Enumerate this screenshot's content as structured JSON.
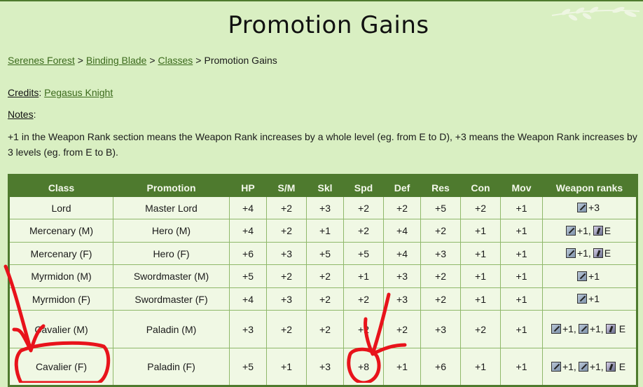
{
  "page": {
    "title": "Promotion Gains",
    "breadcrumb": [
      "Serenes Forest",
      "Binding Blade",
      "Classes"
    ],
    "breadcrumb_current": "Promotion Gains",
    "breadcrumb_sep": ">",
    "credits_label": "Credits",
    "credits_value": "Pegasus Knight",
    "notes_label": "Notes",
    "notes_text": "+1 in the Weapon Rank section means the Weapon Rank increases by a whole level (eg. from E to D), +3 means the Weapon Rank increases by 3 levels (eg. from E to B)."
  },
  "colors": {
    "background": "#d9efc2",
    "header": "#4e7a2e",
    "cell": "#f0f8e4",
    "link": "#3b6a1c",
    "annotation": "#e8131b"
  },
  "table": {
    "headers": [
      "Class",
      "Promotion",
      "HP",
      "S/M",
      "Skl",
      "Spd",
      "Def",
      "Res",
      "Con",
      "Mov",
      "Weapon ranks"
    ],
    "rows": [
      {
        "cells": [
          "Lord",
          "Master Lord",
          "+4",
          "+2",
          "+3",
          "+2",
          "+2",
          "+5",
          "+2",
          "+1"
        ],
        "ranks": [
          {
            "icon": "lance-icon",
            "text": "+3"
          }
        ]
      },
      {
        "cells": [
          "Mercenary (M)",
          "Hero (M)",
          "+4",
          "+2",
          "+1",
          "+2",
          "+4",
          "+2",
          "+1",
          "+1"
        ],
        "ranks": [
          {
            "icon": "lance-icon",
            "text": "+1,"
          },
          {
            "icon": "staff-icon",
            "text": "E"
          }
        ]
      },
      {
        "cells": [
          "Mercenary (F)",
          "Hero (F)",
          "+6",
          "+3",
          "+5",
          "+5",
          "+4",
          "+3",
          "+1",
          "+1"
        ],
        "ranks": [
          {
            "icon": "lance-icon",
            "text": "+1,"
          },
          {
            "icon": "staff-icon",
            "text": "E"
          }
        ]
      },
      {
        "cells": [
          "Myrmidon (M)",
          "Swordmaster (M)",
          "+5",
          "+2",
          "+2",
          "+1",
          "+3",
          "+2",
          "+1",
          "+1"
        ],
        "ranks": [
          {
            "icon": "lance-icon",
            "text": "+1"
          }
        ]
      },
      {
        "cells": [
          "Myrmidon (F)",
          "Swordmaster (F)",
          "+4",
          "+3",
          "+2",
          "+2",
          "+3",
          "+2",
          "+1",
          "+1"
        ],
        "ranks": [
          {
            "icon": "lance-icon",
            "text": "+1"
          }
        ]
      },
      {
        "cells": [
          "Cavalier (M)",
          "Paladin (M)",
          "+3",
          "+2",
          "+2",
          "+2",
          "+2",
          "+3",
          "+2",
          "+1"
        ],
        "ranks": [
          {
            "icon": "lance-icon",
            "text": "+1,"
          },
          {
            "icon": "lance-icon",
            "text": "+1,"
          },
          {
            "icon": "staff-icon",
            "text": ""
          },
          {
            "icon": "",
            "text": "E"
          }
        ]
      },
      {
        "cells": [
          "Cavalier (F)",
          "Paladin (F)",
          "+5",
          "+1",
          "+3",
          "+8",
          "+1",
          "+6",
          "+1",
          "+1"
        ],
        "ranks": [
          {
            "icon": "lance-icon",
            "text": "+1,"
          },
          {
            "icon": "lance-icon",
            "text": "+1,"
          },
          {
            "icon": "staff-icon",
            "text": ""
          },
          {
            "icon": "",
            "text": "E"
          }
        ]
      }
    ]
  }
}
